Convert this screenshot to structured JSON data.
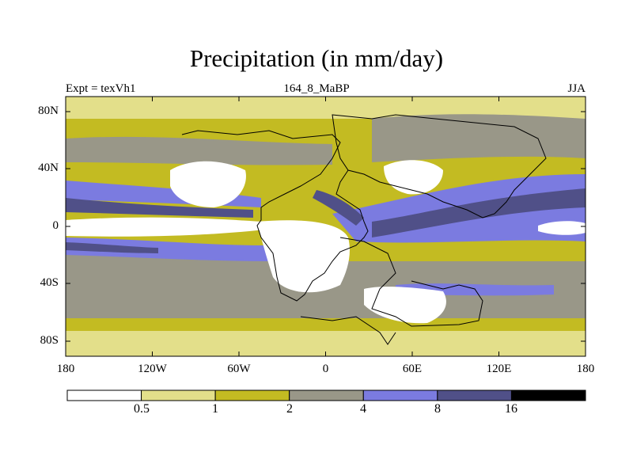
{
  "title": "Precipitation (in mm/day)",
  "expt_label": "Expt = texVh1",
  "subtitle": "164_8_MaBP",
  "season": "JJA",
  "lat_ticks": [
    "80N",
    "40N",
    "0",
    "40S",
    "80S"
  ],
  "lon_ticks": [
    "180",
    "120W",
    "60W",
    "0",
    "60E",
    "120E",
    "180"
  ],
  "colorbar": {
    "boundaries": [
      "0.5",
      "1",
      "2",
      "4",
      "8",
      "16"
    ],
    "colors": [
      "#ffffff",
      "#e3df8a",
      "#c3bb22",
      "#999788",
      "#7b7be0",
      "#505088",
      "#000000"
    ]
  }
}
